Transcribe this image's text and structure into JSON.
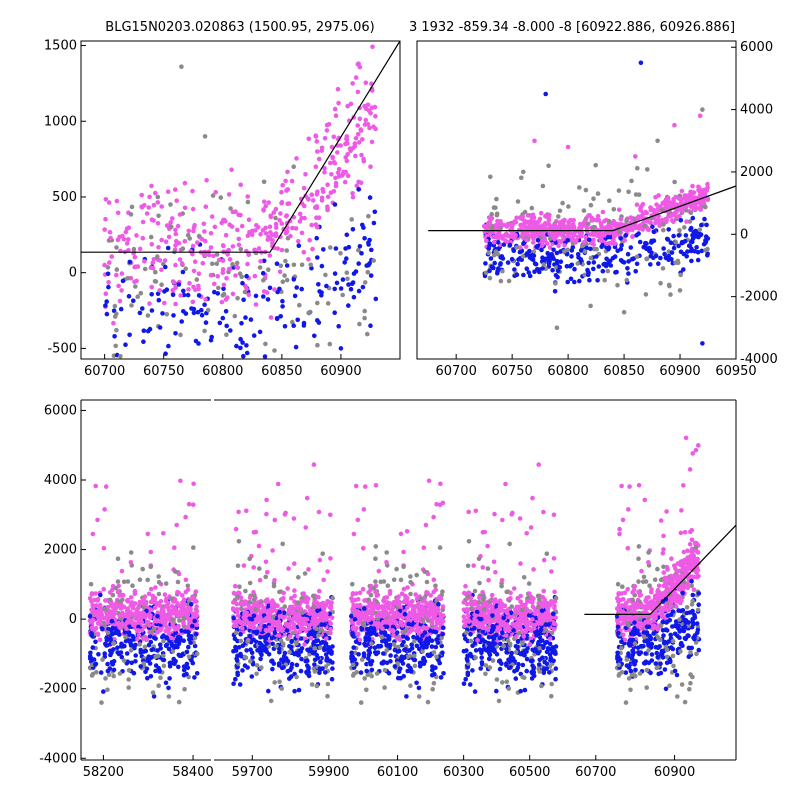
{
  "titles": {
    "left": "BLG15N0203.020863 (1500.95, 2975.06)",
    "right": "3 1932 -859.34 -8.000 -8 [60922.886, 60926.886]"
  },
  "colors": {
    "magenta": "#ee5ae6",
    "blue": "#0f18e8",
    "gray": "#8a8a8a",
    "model": "#000000"
  },
  "chart_data": [
    {
      "type": "scatter",
      "panel": "top-left",
      "xlim": [
        60680,
        60950
      ],
      "ylim": [
        -570,
        1530
      ],
      "xticks": [
        "60700",
        "60750",
        "60800",
        "60850",
        "60900"
      ],
      "yticks": [
        "-500",
        "0",
        "500",
        "1000",
        "1500"
      ],
      "ytick_side": "left",
      "series": [
        {
          "color": "magenta",
          "points": [
            [
              60700,
              50
            ],
            [
              60720,
              220
            ],
            [
              60740,
              350
            ],
            [
              60760,
              180
            ],
            [
              60775,
              420
            ],
            [
              60790,
              260
            ],
            [
              60805,
              150
            ],
            [
              60815,
              380
            ],
            [
              60830,
              300
            ],
            [
              60845,
              420
            ],
            [
              60855,
              550
            ],
            [
              60870,
              650
            ],
            [
              60880,
              800
            ],
            [
              60890,
              980
            ],
            [
              60898,
              1120
            ],
            [
              60905,
              900
            ],
            [
              60910,
              1250
            ],
            [
              60915,
              1380
            ],
            [
              60920,
              1100
            ],
            [
              60925,
              700
            ],
            [
              60760,
              50
            ],
            [
              60800,
              0
            ],
            [
              60850,
              150
            ],
            [
              60880,
              300
            ],
            [
              60915,
              600
            ]
          ]
        },
        {
          "color": "blue",
          "points": [
            [
              60740,
              -250
            ],
            [
              60760,
              -400
            ],
            [
              60780,
              -150
            ],
            [
              60800,
              -300
            ],
            [
              60820,
              -480
            ],
            [
              60840,
              -100
            ],
            [
              60860,
              -350
            ],
            [
              60880,
              100
            ],
            [
              60895,
              450
            ],
            [
              60905,
              250
            ],
            [
              60915,
              550
            ],
            [
              60925,
              -350
            ],
            [
              60900,
              -500
            ]
          ]
        },
        {
          "color": "gray",
          "points": [
            [
              60710,
              -380
            ],
            [
              60745,
              500
            ],
            [
              60765,
              1360
            ],
            [
              60785,
              900
            ],
            [
              60800,
              -150
            ],
            [
              60835,
              600
            ],
            [
              60860,
              700
            ],
            [
              60880,
              -200
            ],
            [
              60905,
              0
            ],
            [
              60920,
              -300
            ]
          ]
        }
      ],
      "model": [
        [
          60680,
          135
        ],
        [
          60840,
          135
        ],
        [
          60950,
          1530
        ]
      ]
    },
    {
      "type": "scatter",
      "panel": "top-right",
      "xlim": [
        60665,
        60950
      ],
      "ylim": [
        -4000,
        6200
      ],
      "xticks": [
        "60700",
        "60750",
        "60800",
        "60850",
        "60900",
        "60950"
      ],
      "yticks": [
        "-4000",
        "-2000",
        "0",
        "2000",
        "4000",
        "6000"
      ],
      "ytick_side": "right",
      "series": [
        {
          "color": "magenta",
          "points": [
            [
              60730,
              0
            ],
            [
              60750,
              100
            ],
            [
              60770,
              300
            ],
            [
              60790,
              150
            ],
            [
              60810,
              200
            ],
            [
              60830,
              0
            ],
            [
              60850,
              300
            ],
            [
              60870,
              500
            ],
            [
              60890,
              900
            ],
            [
              60905,
              1200
            ],
            [
              60920,
              1000
            ],
            [
              60770,
              3000
            ],
            [
              60800,
              2800
            ],
            [
              60860,
              2500
            ],
            [
              60895,
              3500
            ],
            [
              60918,
              3800
            ]
          ]
        },
        {
          "color": "blue",
          "points": [
            [
              60730,
              -300
            ],
            [
              60750,
              -800
            ],
            [
              60770,
              -1200
            ],
            [
              60790,
              -600
            ],
            [
              60810,
              -1500
            ],
            [
              60830,
              -400
            ],
            [
              60850,
              -900
            ],
            [
              60870,
              -300
            ],
            [
              60890,
              -700
            ],
            [
              60910,
              200
            ],
            [
              60780,
              4500
            ],
            [
              60865,
              5500
            ],
            [
              60920,
              -3500
            ]
          ]
        },
        {
          "color": "gray",
          "points": [
            [
              60740,
              -1500
            ],
            [
              60760,
              2000
            ],
            [
              60790,
              -3000
            ],
            [
              60810,
              1500
            ],
            [
              60850,
              -2500
            ],
            [
              60880,
              3000
            ],
            [
              60900,
              -1800
            ],
            [
              60920,
              4000
            ]
          ]
        }
      ],
      "model": [
        [
          60675,
          120
        ],
        [
          60840,
          120
        ],
        [
          60950,
          1550
        ]
      ]
    },
    {
      "type": "scatter",
      "panel": "bottom",
      "ylim": [
        -4050,
        6300
      ],
      "yticks": [
        "-4000",
        "-2000",
        "0",
        "2000",
        "4000",
        "6000"
      ],
      "ytick_side": "left",
      "segments": [
        {
          "xlim": [
            58150,
            58440
          ],
          "xticks": [
            "58200",
            "58400"
          ],
          "center": 58290,
          "half": 120
        },
        {
          "xlim": [
            59600,
            59950
          ],
          "xticks": [
            "59700",
            "59900"
          ],
          "center": 59780,
          "half": 130
        },
        {
          "xlim": [
            59950,
            60740
          ],
          "xticks": [
            "60100",
            "60300",
            "60500",
            "60700"
          ],
          "centers": [
            60100,
            60440
          ],
          "half": 140
        },
        {
          "xlim": [
            60740,
            61050
          ],
          "xticks": [
            "60900"
          ],
          "center": 60860,
          "half": 100
        }
      ],
      "model": [
        [
          60680,
          135
        ],
        [
          60840,
          135
        ],
        [
          61050,
          2700
        ]
      ]
    }
  ]
}
